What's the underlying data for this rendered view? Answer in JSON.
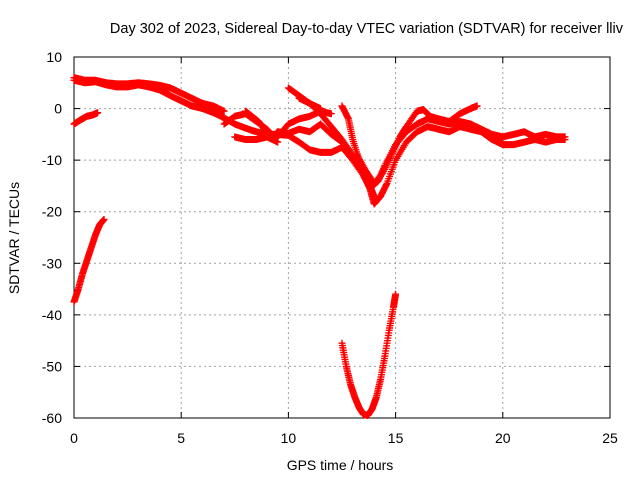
{
  "chart_data": {
    "type": "scatter",
    "title": "Day 302 of 2023, Sidereal Day-to-day VTEC variation (SDTVAR) for receiver lliv",
    "xlabel": "GPS time / hours",
    "ylabel": "SDTVAR / TECUs",
    "xlim": [
      0,
      25
    ],
    "ylim": [
      -60,
      10
    ],
    "xticks": [
      0,
      5,
      10,
      15,
      20,
      25
    ],
    "yticks": [
      -60,
      -50,
      -40,
      -30,
      -20,
      -10,
      0,
      10
    ],
    "grid": true,
    "marker": "plus",
    "color": "#ff0000",
    "series": [
      {
        "values": [
          [
            0.0,
            5.5
          ],
          [
            0.5,
            5.0
          ],
          [
            1.0,
            5.2
          ],
          [
            1.5,
            4.6
          ],
          [
            2.0,
            4.2
          ],
          [
            2.5,
            4.2
          ],
          [
            3.0,
            4.6
          ],
          [
            3.5,
            4.2
          ],
          [
            4.0,
            3.6
          ],
          [
            4.5,
            2.5
          ],
          [
            5.0,
            1.5
          ],
          [
            5.5,
            0.5
          ],
          [
            6.0,
            0.0
          ],
          [
            6.5,
            -0.8
          ],
          [
            7.0,
            -1.8
          ],
          [
            7.5,
            -3.0
          ],
          [
            8.0,
            -3.8
          ],
          [
            8.5,
            -4.5
          ],
          [
            9.0,
            -5.0
          ],
          [
            9.5,
            -5.0
          ],
          [
            10.0,
            -5.2
          ],
          [
            10.5,
            -6.5
          ],
          [
            11.0,
            -8.0
          ],
          [
            11.5,
            -8.5
          ],
          [
            12.0,
            -8.5
          ],
          [
            12.5,
            -7.5
          ],
          [
            13.0,
            -10.0
          ],
          [
            13.5,
            -13.0
          ],
          [
            13.8,
            -15.5
          ],
          [
            14.2,
            -14.0
          ],
          [
            14.5,
            -11.0
          ],
          [
            15.0,
            -7.0
          ],
          [
            15.5,
            -4.5
          ],
          [
            16.0,
            -3.0
          ],
          [
            16.5,
            -2.0
          ],
          [
            17.0,
            -2.5
          ],
          [
            17.5,
            -3.0
          ],
          [
            18.0,
            -2.5
          ],
          [
            18.5,
            -3.0
          ],
          [
            19.0,
            -4.0
          ],
          [
            19.5,
            -5.0
          ],
          [
            20.0,
            -5.5
          ],
          [
            20.5,
            -5.0
          ],
          [
            21.0,
            -4.5
          ],
          [
            21.5,
            -5.5
          ],
          [
            22.0,
            -5.0
          ],
          [
            22.5,
            -5.5
          ],
          [
            22.9,
            -5.5
          ]
        ]
      },
      {
        "values": [
          [
            0.0,
            6.0
          ],
          [
            0.5,
            5.5
          ],
          [
            1.0,
            5.5
          ],
          [
            1.5,
            5.0
          ],
          [
            2.0,
            4.8
          ],
          [
            2.5,
            4.8
          ],
          [
            3.0,
            5.0
          ],
          [
            3.5,
            4.8
          ],
          [
            4.0,
            4.5
          ],
          [
            4.5,
            4.0
          ],
          [
            5.0,
            3.0
          ],
          [
            5.5,
            2.0
          ],
          [
            6.0,
            1.0
          ],
          [
            6.5,
            0.5
          ],
          [
            7.0,
            -0.5
          ]
        ]
      },
      {
        "values": [
          [
            0.0,
            -3.0
          ],
          [
            0.3,
            -2.2
          ],
          [
            0.6,
            -1.5
          ],
          [
            0.9,
            -1.2
          ],
          [
            1.1,
            -0.8
          ]
        ]
      },
      {
        "values": [
          [
            7.0,
            -3.0
          ],
          [
            7.5,
            -1.5
          ],
          [
            8.0,
            -1.0
          ],
          [
            8.5,
            -2.5
          ],
          [
            9.0,
            -4.0
          ],
          [
            9.3,
            -5.5
          ],
          [
            9.5,
            -4.5
          ],
          [
            10.0,
            -4.8
          ],
          [
            10.5,
            -4.0
          ],
          [
            11.0,
            -4.5
          ],
          [
            11.5,
            -3.0
          ],
          [
            12.0,
            -5.0
          ],
          [
            12.5,
            -6.5
          ]
        ]
      },
      {
        "values": [
          [
            8.0,
            -0.5
          ],
          [
            8.3,
            -1.5
          ],
          [
            8.6,
            -2.5
          ],
          [
            8.8,
            -3.5
          ],
          [
            9.0,
            -5.0
          ]
        ]
      },
      {
        "values": [
          [
            7.5,
            -5.5
          ],
          [
            8.0,
            -6.0
          ],
          [
            8.5,
            -6.0
          ],
          [
            9.0,
            -5.5
          ],
          [
            9.5,
            -6.5
          ]
        ]
      },
      {
        "values": [
          [
            9.5,
            -5.5
          ],
          [
            10.0,
            -3.0
          ],
          [
            10.5,
            -2.0
          ],
          [
            11.0,
            -1.5
          ],
          [
            11.5,
            -0.5
          ],
          [
            12.0,
            -1.0
          ]
        ]
      },
      {
        "values": [
          [
            10.0,
            4.0
          ],
          [
            10.5,
            2.5
          ],
          [
            11.0,
            1.0
          ],
          [
            11.5,
            -1.0
          ],
          [
            12.0,
            -3.5
          ],
          [
            12.5,
            -6.0
          ],
          [
            13.0,
            -9.0
          ],
          [
            13.5,
            -12.0
          ],
          [
            13.8,
            -15.0
          ],
          [
            14.0,
            -17.0
          ]
        ]
      },
      {
        "values": [
          [
            10.5,
            2.0
          ],
          [
            11.0,
            1.0
          ],
          [
            11.5,
            0.0
          ]
        ]
      },
      {
        "values": [
          [
            12.5,
            0.5
          ],
          [
            12.8,
            -2.0
          ],
          [
            13.0,
            -6.0
          ],
          [
            13.3,
            -10.0
          ],
          [
            13.6,
            -13.0
          ],
          [
            13.8,
            -15.5
          ],
          [
            14.0,
            -18.5
          ],
          [
            14.3,
            -17.0
          ],
          [
            14.6,
            -14.5
          ],
          [
            15.0,
            -10.0
          ],
          [
            15.5,
            -6.5
          ],
          [
            16.0,
            -4.5
          ],
          [
            16.5,
            -3.5
          ],
          [
            17.0,
            -4.0
          ],
          [
            17.5,
            -4.5
          ],
          [
            18.0,
            -3.5
          ],
          [
            18.5,
            -4.0
          ],
          [
            19.0,
            -4.5
          ],
          [
            19.5,
            -6.0
          ],
          [
            20.0,
            -7.0
          ],
          [
            20.5,
            -7.0
          ],
          [
            21.0,
            -6.5
          ],
          [
            21.5,
            -6.0
          ],
          [
            22.0,
            -6.5
          ],
          [
            22.5,
            -6.0
          ],
          [
            22.9,
            -6.0
          ]
        ]
      },
      {
        "values": [
          [
            13.2,
            -9.0
          ],
          [
            13.6,
            -12.0
          ],
          [
            14.0,
            -14.5
          ],
          [
            14.4,
            -12.5
          ],
          [
            14.8,
            -9.0
          ],
          [
            15.2,
            -5.5
          ],
          [
            15.5,
            -3.5
          ],
          [
            16.0,
            -0.5
          ],
          [
            16.3,
            -0.2
          ],
          [
            16.6,
            -1.5
          ],
          [
            17.0,
            -2.0
          ],
          [
            17.5,
            -2.5
          ],
          [
            18.0,
            -1.0
          ],
          [
            18.5,
            0.0
          ],
          [
            18.8,
            0.5
          ]
        ]
      },
      {
        "values": [
          [
            18.0,
            -3.0
          ],
          [
            18.5,
            -3.0
          ],
          [
            19.0,
            -4.5
          ],
          [
            19.5,
            -6.0
          ],
          [
            20.0,
            -6.5
          ]
        ]
      },
      {
        "values": [
          [
            0.0,
            -37.5
          ],
          [
            0.2,
            -35.0
          ],
          [
            0.4,
            -32.0
          ],
          [
            0.6,
            -29.5
          ],
          [
            0.8,
            -27.0
          ],
          [
            1.0,
            -24.5
          ],
          [
            1.2,
            -22.5
          ],
          [
            1.4,
            -21.5
          ]
        ]
      },
      {
        "values": [
          [
            12.5,
            -45.5
          ],
          [
            12.7,
            -50.0
          ],
          [
            12.9,
            -53.5
          ],
          [
            13.1,
            -56.0
          ],
          [
            13.3,
            -58.0
          ],
          [
            13.5,
            -59.3
          ],
          [
            13.7,
            -59.5
          ],
          [
            13.9,
            -58.3
          ],
          [
            14.1,
            -56.0
          ],
          [
            14.3,
            -52.5
          ],
          [
            14.5,
            -48.0
          ],
          [
            14.7,
            -43.0
          ],
          [
            14.9,
            -38.5
          ],
          [
            15.0,
            -36.0
          ]
        ]
      }
    ]
  }
}
